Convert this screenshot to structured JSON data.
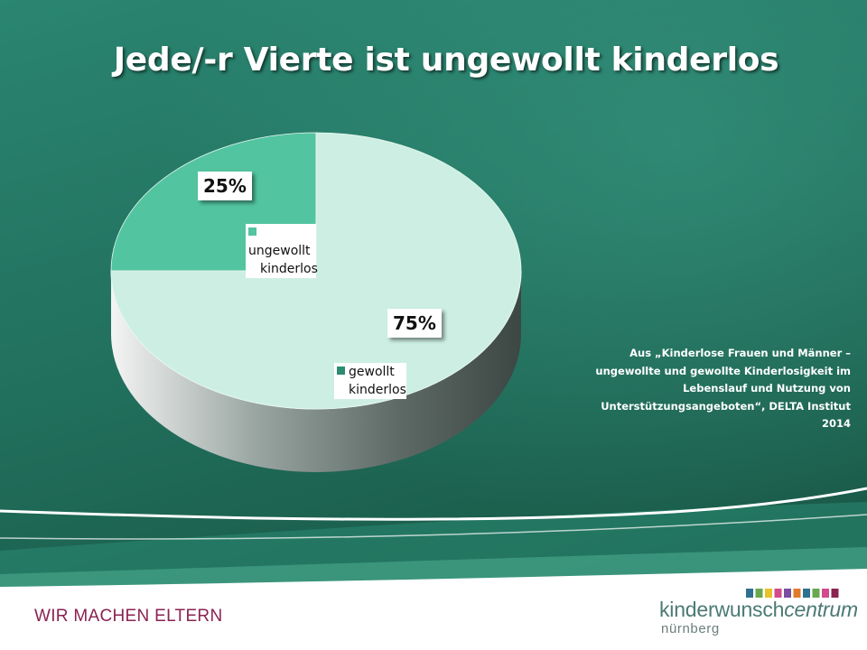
{
  "title": "Jede/-r Vierte ist ungewollt kinderlos",
  "chart_data": {
    "type": "pie",
    "title": "Jede/-r Vierte ist ungewollt kinderlos",
    "slices": [
      {
        "name": "ungewollt kinderlos",
        "value": 25,
        "label": "25%",
        "color": "#52c4a0"
      },
      {
        "name": "gewollt kinderlos",
        "value": 75,
        "label": "75%",
        "color": "#cdefe3"
      }
    ],
    "legend": [
      {
        "line1": "ungewollt",
        "line2": "kinderlos"
      },
      {
        "line1": "gewollt",
        "line2": "kinderlos"
      }
    ]
  },
  "source": {
    "line1": "Aus „Kinderlose Frauen und Männer –",
    "line2": "ungewollte und gewollte Kinderlosigkeit im",
    "line3": "Lebenslauf und Nutzung von",
    "line4": "Unterstützungsangeboten“, DELTA Institut",
    "line5": "2014"
  },
  "footer": {
    "tagline": "WIR MACHEN ELTERN",
    "brand_regular": "kinderwunsch",
    "brand_italic": "centrum",
    "city": "nürnberg",
    "logo_colors": [
      "#2f6f8f",
      "#6aa84f",
      "#e8c22a",
      "#d34b8c",
      "#7a4fa0",
      "#e07b2a",
      "#2f6f8f",
      "#6aa84f",
      "#d34b8c",
      "#8b2252"
    ]
  },
  "colors": {
    "background_top": "#2a8a72",
    "background_bottom": "#1b5a47",
    "accent_dark": "#2a8a72"
  }
}
